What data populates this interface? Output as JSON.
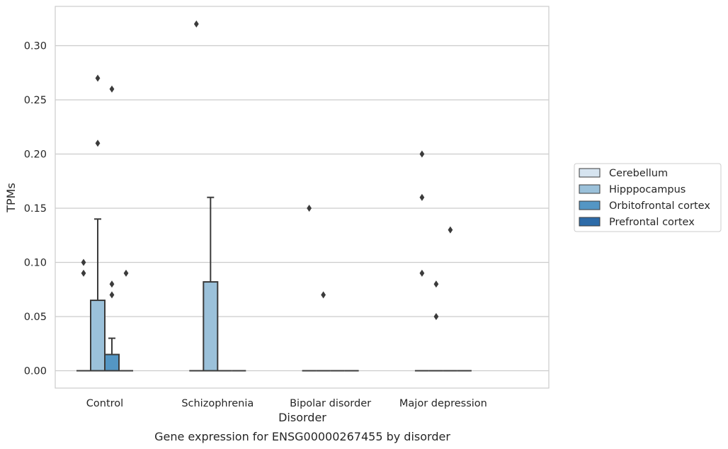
{
  "chart_data": {
    "type": "box",
    "caption": "Gene expression for ENSG00000267455 by disorder",
    "xlabel": "Disorder",
    "ylabel": "TPMs",
    "ylim": [
      -0.016,
      0.336
    ],
    "yticks": [
      "0.00",
      "0.05",
      "0.10",
      "0.15",
      "0.20",
      "0.25",
      "0.30"
    ],
    "grid": "horizontal",
    "legend_position": "right",
    "categories": [
      "Control",
      "Schizophrenia",
      "Bipolar disorder",
      "Major depression"
    ],
    "series": [
      {
        "name": "Cerebellum",
        "color": "#d6e4f0",
        "boxes": [
          {
            "q1": 0,
            "median": 0,
            "q3": 0,
            "whisker_low": 0,
            "whisker_high": 0,
            "outliers": [
              0.1,
              0.09
            ]
          },
          {
            "q1": 0,
            "median": 0,
            "q3": 0,
            "whisker_low": 0,
            "whisker_high": 0,
            "outliers": [
              0.32
            ]
          },
          {
            "q1": 0,
            "median": 0,
            "q3": 0,
            "whisker_low": 0,
            "whisker_high": 0,
            "outliers": [
              0.15
            ]
          },
          {
            "q1": 0,
            "median": 0,
            "q3": 0,
            "whisker_low": 0,
            "whisker_high": 0,
            "outliers": [
              0.2,
              0.16,
              0.09
            ]
          }
        ]
      },
      {
        "name": "Hipppocampus",
        "color": "#9bc1da",
        "boxes": [
          {
            "q1": 0,
            "median": 0,
            "q3": 0.065,
            "whisker_low": 0,
            "whisker_high": 0.14,
            "outliers": [
              0.27,
              0.21
            ]
          },
          {
            "q1": 0,
            "median": 0,
            "q3": 0.082,
            "whisker_low": 0,
            "whisker_high": 0.16,
            "outliers": []
          },
          {
            "q1": 0,
            "median": 0,
            "q3": 0,
            "whisker_low": 0,
            "whisker_high": 0,
            "outliers": [
              0.07
            ]
          },
          {
            "q1": 0,
            "median": 0,
            "q3": 0,
            "whisker_low": 0,
            "whisker_high": 0,
            "outliers": [
              0.08,
              0.05
            ]
          }
        ]
      },
      {
        "name": "Orbitofrontal cortex",
        "color": "#5496c4",
        "boxes": [
          {
            "q1": 0,
            "median": 0,
            "q3": 0.015,
            "whisker_low": 0,
            "whisker_high": 0.03,
            "outliers": [
              0.26,
              0.08,
              0.07
            ]
          },
          {
            "q1": 0,
            "median": 0,
            "q3": 0,
            "whisker_low": 0,
            "whisker_high": 0,
            "outliers": []
          },
          {
            "q1": 0,
            "median": 0,
            "q3": 0,
            "whisker_low": 0,
            "whisker_high": 0,
            "outliers": []
          },
          {
            "q1": 0,
            "median": 0,
            "q3": 0,
            "whisker_low": 0,
            "whisker_high": 0,
            "outliers": [
              0.13
            ]
          }
        ]
      },
      {
        "name": "Prefrontal cortex",
        "color": "#2d6ba8",
        "boxes": [
          {
            "q1": 0,
            "median": 0,
            "q3": 0,
            "whisker_low": 0,
            "whisker_high": 0,
            "outliers": [
              0.09
            ]
          },
          {
            "q1": 0,
            "median": 0,
            "q3": 0,
            "whisker_low": 0,
            "whisker_high": 0,
            "outliers": []
          },
          {
            "q1": 0,
            "median": 0,
            "q3": 0,
            "whisker_low": 0,
            "whisker_high": 0,
            "outliers": []
          },
          {
            "q1": 0,
            "median": 0,
            "q3": 0,
            "whisker_low": 0,
            "whisker_high": 0,
            "outliers": []
          }
        ]
      }
    ]
  }
}
